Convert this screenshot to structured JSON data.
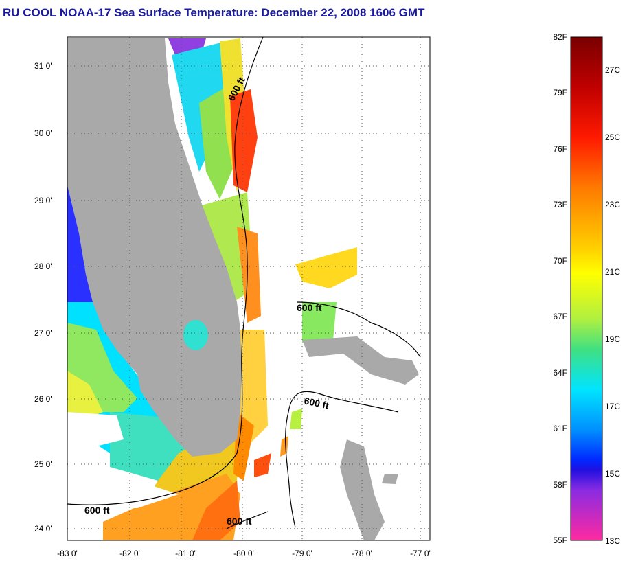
{
  "title": "RU COOL  NOAA-17  Sea Surface Temperature:  December 22, 2008 1606 GMT",
  "lat_labels": [
    "31 0'",
    "30 0'",
    "29 0'",
    "28 0'",
    "27 0'",
    "26 0'",
    "25 0'",
    "24 0'"
  ],
  "lon_labels": [
    "-83 0'",
    "-82 0'",
    "-81 0'",
    "-80 0'",
    "-79 0'",
    "-78 0'",
    "-77 0'"
  ],
  "contour_label": "600 ft",
  "colorbar": {
    "fahrenheit": [
      "82F",
      "79F",
      "76F",
      "73F",
      "70F",
      "67F",
      "64F",
      "61F",
      "58F",
      "55F"
    ],
    "celsius": [
      "27C",
      "25C",
      "23C",
      "21C",
      "19C",
      "17C",
      "15C",
      "13C"
    ]
  },
  "colors": {
    "title": "#1a1aa0",
    "land": "#a9a9a9",
    "scale_top": "#7a0000",
    "scale_red": "#ff1a00",
    "scale_orange": "#ff7a00",
    "scale_yellow": "#ffff00",
    "scale_green": "#80e040",
    "scale_cyan": "#00e5ff",
    "scale_blue": "#0028ff",
    "scale_purple": "#8a2be2",
    "scale_bottom": "#ff2aa0"
  }
}
